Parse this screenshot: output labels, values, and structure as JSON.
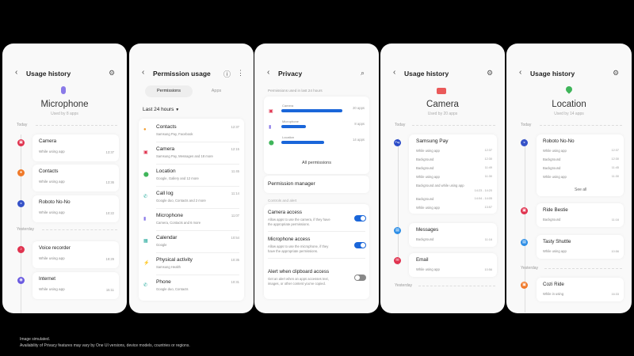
{
  "footer": {
    "line1": "Image simulated.",
    "line2": "Availability of Privacy features may vary by One UI versions, device models, countries or regions."
  },
  "colors": {
    "toggle_on": "#1a66d9",
    "bar": "#1a66d9",
    "background": "#000000"
  },
  "mic_history": {
    "title": "Usage history",
    "icons": [
      "back-icon",
      "gear-icon",
      "microphone-icon"
    ],
    "name": "Microphone",
    "used": "Used by 8 apps",
    "today": "Today",
    "yesterday": "Yesterday",
    "items": [
      {
        "app": "Camera",
        "mode": "While using app",
        "time": "13:37"
      },
      {
        "app": "Contacts",
        "mode": "While using app",
        "time": "13:36"
      },
      {
        "app": "Roboto No-No",
        "mode": "While using app",
        "time": "10:22"
      },
      {
        "app": "Voice recorder",
        "mode": "While using app",
        "time": "19:29"
      },
      {
        "app": "Internet",
        "mode": "While using app",
        "time": "15:11"
      }
    ]
  },
  "permission_usage": {
    "title": "Permission usage",
    "tabs": [
      "Permissions",
      "Apps"
    ],
    "active_tab": "Permissions",
    "filter": "Last 24 hours",
    "items": [
      {
        "name": "Contacts",
        "apps": "Samsung Pay, Facebook",
        "time": "12:37"
      },
      {
        "name": "Camera",
        "apps": "Samsung Pay, Messages and 18 more",
        "time": "12:15"
      },
      {
        "name": "Location",
        "apps": "Google, Gallery and 12 more",
        "time": "11:45"
      },
      {
        "name": "Call log",
        "apps": "Google duo, Contacts and 2 more",
        "time": "11:14"
      },
      {
        "name": "Microphone",
        "apps": "Camera, Contacts and 6 more",
        "time": "11:07"
      },
      {
        "name": "Calendar",
        "apps": "Google",
        "time": "10:54"
      },
      {
        "name": "Physical activity",
        "apps": "Samsung Health",
        "time": "10:35"
      },
      {
        "name": "Phone",
        "apps": "Google duo, Contacts",
        "time": "10:31"
      }
    ]
  },
  "privacy": {
    "title": "Privacy",
    "caption": "Permissions used in last 24 hours",
    "bars": [
      {
        "name": "Camera",
        "count": "20 apps",
        "value": 20
      },
      {
        "name": "Microphone",
        "count": "8 apps",
        "value": 8
      },
      {
        "name": "Location",
        "count": "14 apps",
        "value": 14
      }
    ],
    "all_permissions": "All permissions",
    "manager": "Permission manager",
    "controls": "Controls and alert",
    "settings": [
      {
        "title": "Camera access",
        "desc1": "Allow apps to use the camera, if they have",
        "desc2": "the appropriate permissions.",
        "on": true
      },
      {
        "title": "Microphone access",
        "desc1": "Allow apps to use the microphone, if they",
        "desc2": "have the appropriate permissions.",
        "on": true
      },
      {
        "title": "Alert when clipboard access",
        "desc1": "Get an alert when an apps accesses text,",
        "desc2": "images, or other content you've copied.",
        "on": false
      }
    ]
  },
  "camera_history": {
    "title": "Usage history",
    "name": "Camera",
    "used": "Used by 20 apps",
    "today": "Today",
    "yesterday": "Yesterday",
    "pay": {
      "app": "Samsung Pay",
      "rows": [
        [
          "While using app",
          "12:37"
        ],
        [
          "Background",
          "12:30"
        ],
        [
          "Background",
          "11:49"
        ],
        [
          "While using app",
          "11:30"
        ],
        [
          "Background and while using app",
          "14:23 - 14:20"
        ],
        [
          "Background",
          "14:04 - 14:05"
        ],
        [
          "While using app",
          "13:57"
        ]
      ]
    },
    "messages": {
      "app": "Messages",
      "mode": "Background",
      "time": "11:16"
    },
    "email": {
      "app": "Email",
      "mode": "While using app",
      "time": "10:56"
    }
  },
  "location_history": {
    "title": "Usage history",
    "name": "Location",
    "used": "Used by 14 apps",
    "today": "Today",
    "yesterday": "Yesterday",
    "roboto": {
      "app": "Roboto No-No",
      "rows": [
        [
          "While using app",
          "12:37"
        ],
        [
          "Background",
          "12:30"
        ],
        [
          "Background",
          "11:45"
        ],
        [
          "While using app",
          "11:30"
        ]
      ],
      "see_all": "See all"
    },
    "others": [
      {
        "app": "Ride Bestie",
        "mode": "Background",
        "time": "11:16"
      },
      {
        "app": "Tasty Shuttle",
        "mode": "While using app",
        "time": "10:56"
      }
    ],
    "cozi": {
      "app": "Cozi Ride",
      "mode": "While in using",
      "time": "16:33"
    }
  }
}
